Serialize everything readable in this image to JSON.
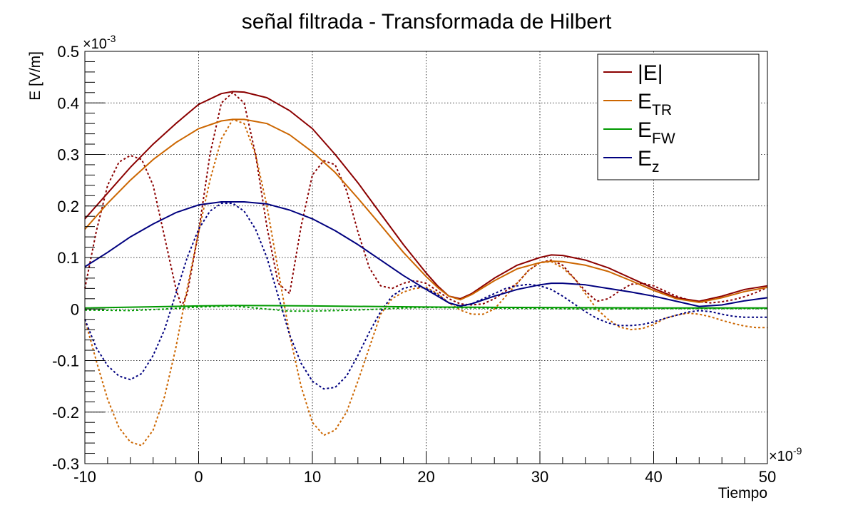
{
  "chart_data": {
    "type": "line",
    "title": "señal filtrada - Transformada de Hilbert",
    "xlabel": "Tiempo",
    "ylabel": "E [V/m]",
    "x_multiplier": "×10",
    "x_exponent": "-9",
    "y_multiplier": "×10",
    "y_exponent": "-3",
    "xlim": [
      -10,
      50
    ],
    "ylim": [
      -0.3,
      0.5
    ],
    "x_ticks": [
      "-10",
      "0",
      "10",
      "20",
      "30",
      "40",
      "50"
    ],
    "y_ticks": [
      "-0.3",
      "-0.2",
      "-0.1",
      "0",
      "0.1",
      "0.2",
      "0.3",
      "0.4",
      "0.5"
    ],
    "grid": true,
    "legend_position": "top-right",
    "legend": [
      {
        "base": "|E|",
        "sub": "",
        "color": "#8b0000"
      },
      {
        "base": "E",
        "sub": "TR",
        "color": "#cc6600"
      },
      {
        "base": "E",
        "sub": "FW",
        "color": "#009900"
      },
      {
        "base": "E",
        "sub": "z",
        "color": "#00007f"
      }
    ],
    "series": [
      {
        "key": "abs_envelope",
        "style": "solid",
        "color": "#8b0000",
        "x": [
          -10,
          -8,
          -6,
          -4,
          -2,
          0,
          2,
          3,
          4,
          6,
          8,
          10,
          12,
          14,
          16,
          18,
          20,
          21,
          22,
          23,
          24,
          26,
          28,
          30,
          31,
          32,
          34,
          36,
          38,
          40,
          42,
          44,
          46,
          48,
          50
        ],
        "y": [
          0.175,
          0.225,
          0.275,
          0.32,
          0.36,
          0.397,
          0.418,
          0.422,
          0.421,
          0.41,
          0.385,
          0.35,
          0.3,
          0.245,
          0.185,
          0.125,
          0.07,
          0.045,
          0.025,
          0.02,
          0.03,
          0.06,
          0.085,
          0.1,
          0.105,
          0.104,
          0.095,
          0.08,
          0.06,
          0.04,
          0.022,
          0.015,
          0.025,
          0.038,
          0.045
        ]
      },
      {
        "key": "abs_signal",
        "style": "dashed",
        "color": "#8b0000",
        "x": [
          -10,
          -9,
          -8,
          -7,
          -6,
          -5,
          -4,
          -3,
          -2,
          -1.5,
          -1,
          0,
          1,
          2,
          3,
          4,
          5,
          6,
          7,
          8,
          9,
          10,
          11,
          12,
          13,
          14,
          15,
          16,
          17,
          18,
          19,
          20,
          21,
          22,
          23,
          24,
          25,
          26,
          27,
          28,
          29,
          30,
          31,
          32,
          33,
          34,
          35,
          36,
          37,
          38,
          39,
          40,
          41,
          42,
          43,
          44,
          45,
          46,
          47,
          48,
          49,
          50
        ],
        "y": [
          0.04,
          0.15,
          0.24,
          0.285,
          0.298,
          0.29,
          0.24,
          0.14,
          0.04,
          0.005,
          0.03,
          0.15,
          0.3,
          0.4,
          0.42,
          0.4,
          0.3,
          0.16,
          0.05,
          0.03,
          0.16,
          0.26,
          0.288,
          0.28,
          0.23,
          0.15,
          0.08,
          0.045,
          0.04,
          0.05,
          0.055,
          0.05,
          0.035,
          0.02,
          0.01,
          0.008,
          0.01,
          0.02,
          0.035,
          0.05,
          0.075,
          0.09,
          0.095,
          0.085,
          0.06,
          0.035,
          0.015,
          0.02,
          0.035,
          0.048,
          0.05,
          0.045,
          0.035,
          0.025,
          0.018,
          0.014,
          0.012,
          0.014,
          0.018,
          0.024,
          0.032,
          0.042
        ]
      },
      {
        "key": "etr_envelope",
        "style": "solid",
        "color": "#cc6600",
        "x": [
          -10,
          -8,
          -6,
          -4,
          -2,
          0,
          2,
          3,
          4,
          6,
          8,
          10,
          12,
          14,
          16,
          18,
          20,
          21,
          22,
          23,
          24,
          26,
          28,
          30,
          31,
          32,
          34,
          36,
          38,
          40,
          42,
          44,
          46,
          48,
          50
        ],
        "y": [
          0.155,
          0.205,
          0.25,
          0.29,
          0.323,
          0.35,
          0.365,
          0.368,
          0.368,
          0.36,
          0.338,
          0.305,
          0.265,
          0.215,
          0.163,
          0.11,
          0.063,
          0.042,
          0.025,
          0.018,
          0.028,
          0.055,
          0.078,
          0.09,
          0.093,
          0.092,
          0.085,
          0.073,
          0.055,
          0.036,
          0.02,
          0.013,
          0.022,
          0.034,
          0.042
        ]
      },
      {
        "key": "etr_signal",
        "style": "dashed",
        "color": "#cc6600",
        "x": [
          -10,
          -9,
          -8,
          -7,
          -6,
          -5,
          -4,
          -3,
          -2,
          -1,
          0,
          1,
          2,
          3,
          4,
          5,
          6,
          7,
          8,
          9,
          10,
          11,
          12,
          13,
          14,
          15,
          16,
          17,
          18,
          19,
          20,
          21,
          22,
          23,
          24,
          25,
          26,
          27,
          28,
          29,
          30,
          31,
          32,
          33,
          34,
          35,
          36,
          37,
          38,
          39,
          40,
          41,
          42,
          43,
          44,
          45,
          46,
          47,
          48,
          49,
          50
        ],
        "y": [
          -0.02,
          -0.1,
          -0.175,
          -0.23,
          -0.258,
          -0.265,
          -0.235,
          -0.17,
          -0.075,
          0.04,
          0.15,
          0.25,
          0.33,
          0.368,
          0.36,
          0.3,
          0.2,
          0.075,
          -0.05,
          -0.15,
          -0.22,
          -0.245,
          -0.235,
          -0.2,
          -0.14,
          -0.075,
          -0.01,
          0.02,
          0.033,
          0.04,
          0.042,
          0.03,
          0.012,
          -0.002,
          -0.01,
          -0.01,
          0.0,
          0.025,
          0.05,
          0.075,
          0.09,
          0.092,
          0.08,
          0.06,
          0.03,
          0.0,
          -0.02,
          -0.035,
          -0.04,
          -0.038,
          -0.03,
          -0.018,
          -0.012,
          -0.008,
          -0.01,
          -0.015,
          -0.022,
          -0.028,
          -0.033,
          -0.036,
          -0.036
        ]
      },
      {
        "key": "efw_envelope",
        "style": "solid",
        "color": "#009900",
        "x": [
          -10,
          0,
          3,
          10,
          20,
          30,
          40,
          50
        ],
        "y": [
          0.002,
          0.006,
          0.007,
          0.006,
          0.004,
          0.003,
          0.002,
          0.002
        ]
      },
      {
        "key": "efw_signal",
        "style": "dashed",
        "color": "#009900",
        "x": [
          -10,
          -6,
          -3,
          0,
          3,
          6,
          8,
          10,
          12,
          15,
          18,
          20,
          25,
          30,
          35,
          40,
          45,
          50
        ],
        "y": [
          -0.002,
          -0.003,
          0.0,
          0.004,
          0.006,
          0.0,
          -0.004,
          -0.004,
          -0.003,
          -0.001,
          0.002,
          0.003,
          0.002,
          0.001,
          0.0,
          0.001,
          0.001,
          0.001
        ]
      },
      {
        "key": "ez_envelope",
        "style": "solid",
        "color": "#00007f",
        "x": [
          -10,
          -8,
          -6,
          -4,
          -2,
          0,
          2,
          3,
          4,
          6,
          8,
          10,
          12,
          14,
          16,
          18,
          20,
          21,
          22,
          23,
          24,
          26,
          28,
          30,
          31,
          32,
          34,
          36,
          38,
          40,
          42,
          44,
          46,
          48,
          50
        ],
        "y": [
          0.082,
          0.11,
          0.14,
          0.165,
          0.187,
          0.202,
          0.208,
          0.208,
          0.208,
          0.204,
          0.192,
          0.175,
          0.152,
          0.125,
          0.095,
          0.065,
          0.038,
          0.025,
          0.012,
          0.006,
          0.01,
          0.025,
          0.038,
          0.047,
          0.05,
          0.05,
          0.047,
          0.04,
          0.033,
          0.025,
          0.015,
          0.005,
          0.008,
          0.016,
          0.022
        ]
      },
      {
        "key": "ez_signal",
        "style": "dashed",
        "color": "#00007f",
        "x": [
          -10,
          -9,
          -8,
          -7,
          -6,
          -5,
          -4,
          -3,
          -2,
          -1,
          0,
          1,
          2,
          3,
          4,
          5,
          6,
          7,
          8,
          9,
          10,
          11,
          12,
          13,
          14,
          15,
          16,
          17,
          18,
          19,
          20,
          21,
          22,
          23,
          24,
          25,
          26,
          27,
          28,
          29,
          30,
          31,
          32,
          33,
          34,
          35,
          36,
          37,
          38,
          39,
          40,
          41,
          42,
          43,
          44,
          45,
          46,
          47,
          48,
          49,
          50
        ],
        "y": [
          -0.02,
          -0.075,
          -0.11,
          -0.13,
          -0.137,
          -0.125,
          -0.09,
          -0.04,
          0.03,
          0.1,
          0.155,
          0.19,
          0.205,
          0.205,
          0.19,
          0.155,
          0.1,
          0.025,
          -0.05,
          -0.105,
          -0.14,
          -0.155,
          -0.152,
          -0.13,
          -0.09,
          -0.045,
          -0.005,
          0.025,
          0.04,
          0.045,
          0.04,
          0.028,
          0.012,
          0.005,
          0.01,
          0.02,
          0.03,
          0.04,
          0.045,
          0.048,
          0.045,
          0.038,
          0.025,
          0.01,
          -0.005,
          -0.018,
          -0.027,
          -0.032,
          -0.032,
          -0.03,
          -0.025,
          -0.018,
          -0.012,
          -0.006,
          -0.003,
          -0.005,
          -0.01,
          -0.014,
          -0.016,
          -0.016,
          -0.016
        ]
      }
    ]
  }
}
